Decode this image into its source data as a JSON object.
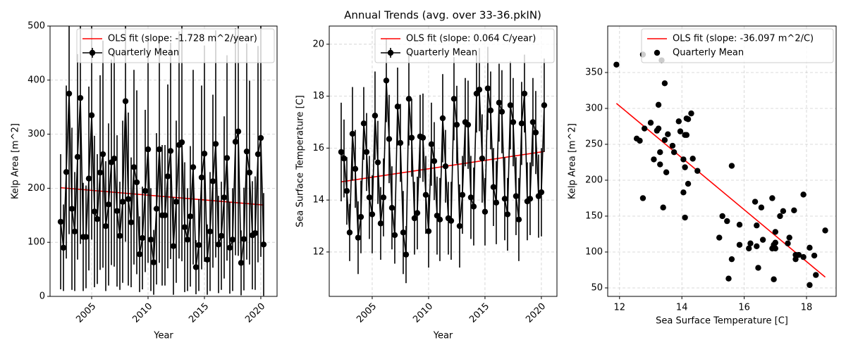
{
  "chart_data": [
    {
      "type": "line",
      "xlabel": "Year",
      "ylabel": "Kelp Area [m^2]",
      "xlim": [
        2001.31,
        2021.44
      ],
      "ylim": [
        0,
        500
      ],
      "xticks": [
        2005,
        2010,
        2015,
        2020
      ],
      "yticks": [
        0,
        100,
        200,
        300,
        400,
        500
      ],
      "grid": true,
      "legend": "upper right",
      "x": [
        2002.25,
        2002.5,
        2002.75,
        2003,
        2003.25,
        2003.5,
        2003.75,
        2004,
        2004.25,
        2004.5,
        2004.75,
        2005,
        2005.25,
        2005.5,
        2005.75,
        2006,
        2006.25,
        2006.5,
        2006.75,
        2007,
        2007.25,
        2007.5,
        2007.75,
        2008,
        2008.25,
        2008.5,
        2008.75,
        2009,
        2009.25,
        2009.5,
        2009.75,
        2010,
        2010.25,
        2010.5,
        2010.75,
        2011,
        2011.25,
        2011.5,
        2011.75,
        2012,
        2012.25,
        2012.5,
        2012.75,
        2013,
        2013.25,
        2013.5,
        2013.75,
        2014,
        2014.25,
        2014.5,
        2014.75,
        2015,
        2015.25,
        2015.5,
        2015.75,
        2016,
        2016.25,
        2016.5,
        2016.75,
        2017,
        2017.25,
        2017.5,
        2017.75,
        2018,
        2018.25,
        2018.5,
        2018.75,
        2019,
        2019.25,
        2019.5,
        2019.75,
        2020,
        2020.25
      ],
      "series": [
        {
          "name": "OLS fit (slope: -1.728 m^2/year)",
          "color": "#ff0000",
          "line": true,
          "marker": false,
          "x": [
            2002.25,
            2020.25
          ],
          "values": [
            201,
            169
          ]
        },
        {
          "name": "Quarterly Mean",
          "color": "#000000",
          "line": true,
          "marker": true,
          "values": [
            138,
            90,
            230,
            375,
            162,
            120,
            258,
            367,
            110,
            110,
            218,
            335,
            157,
            143,
            229,
            263,
            130,
            170,
            248,
            255,
            158,
            112,
            175,
            361,
            180,
            137,
            239,
            211,
            78,
            108,
            195,
            272,
            105,
            63,
            162,
            272,
            150,
            150,
            222,
            269,
            93,
            175,
            280,
            285,
            128,
            105,
            148,
            239,
            54,
            95,
            220,
            264,
            68,
            120,
            213,
            282,
            96,
            112,
            183,
            256,
            90,
            105,
            286,
            305,
            62,
            106,
            268,
            229,
            113,
            117,
            263,
            293,
            96
          ],
          "errors": [
            125,
            80,
            160,
            260,
            150,
            110,
            190,
            270,
            100,
            95,
            170,
            230,
            140,
            120,
            180,
            210,
            120,
            150,
            190,
            200,
            140,
            100,
            150,
            260,
            160,
            120,
            180,
            170,
            70,
            95,
            150,
            210,
            95,
            60,
            140,
            210,
            130,
            130,
            170,
            200,
            90,
            150,
            210,
            220,
            120,
            95,
            130,
            180,
            50,
            85,
            170,
            200,
            65,
            110,
            160,
            210,
            90,
            100,
            150,
            190,
            85,
            95,
            210,
            230,
            60,
            95,
            200,
            170,
            100,
            105,
            200,
            220,
            95
          ]
        }
      ]
    },
    {
      "type": "line",
      "title": "Annual Trends (avg. over 33-36.pkIN)",
      "xlabel": "Year",
      "ylabel": "Sea Surface Temperature [C]",
      "xlim": [
        2001.19,
        2021.38
      ],
      "ylim": [
        10.29,
        20.7
      ],
      "xticks": [
        2005,
        2010,
        2015,
        2020
      ],
      "yticks": [
        12,
        14,
        16,
        18,
        20
      ],
      "grid": true,
      "legend": "upper right",
      "x": [
        2002.25,
        2002.5,
        2002.75,
        2003,
        2003.25,
        2003.5,
        2003.75,
        2004,
        2004.25,
        2004.5,
        2004.75,
        2005,
        2005.25,
        2005.5,
        2005.75,
        2006,
        2006.25,
        2006.5,
        2006.75,
        2007,
        2007.25,
        2007.5,
        2007.75,
        2008,
        2008.25,
        2008.5,
        2008.75,
        2009,
        2009.25,
        2009.5,
        2009.75,
        2010,
        2010.25,
        2010.5,
        2010.75,
        2011,
        2011.25,
        2011.5,
        2011.75,
        2012,
        2012.25,
        2012.5,
        2012.75,
        2013,
        2013.25,
        2013.5,
        2013.75,
        2014,
        2014.25,
        2014.5,
        2014.75,
        2015,
        2015.25,
        2015.5,
        2015.75,
        2016,
        2016.25,
        2016.5,
        2016.75,
        2017,
        2017.25,
        2017.5,
        2017.75,
        2018,
        2018.25,
        2018.5,
        2018.75,
        2019,
        2019.25,
        2019.5,
        2019.75,
        2020,
        2020.25
      ],
      "series": [
        {
          "name": "OLS fit (slope: 0.064 C/year)",
          "color": "#ff0000",
          "line": true,
          "marker": false,
          "x": [
            2002.25,
            2020.25
          ],
          "values": [
            14.7,
            15.87
          ]
        },
        {
          "name": "Quarterly Mean",
          "color": "#000000",
          "line": true,
          "marker": true,
          "values": [
            15.85,
            15.6,
            14.35,
            12.75,
            16.55,
            15.2,
            12.55,
            13.35,
            16.95,
            15.85,
            14.1,
            13.45,
            17.25,
            15.45,
            13.1,
            14.1,
            18.6,
            16.35,
            13.7,
            12.65,
            17.6,
            16.2,
            12.75,
            11.9,
            17.9,
            16.4,
            13.3,
            13.5,
            16.45,
            16.4,
            14.2,
            12.8,
            16.15,
            15.5,
            13.4,
            13.25,
            17.15,
            15.3,
            13.3,
            13.2,
            17.9,
            16.9,
            13.0,
            14.2,
            17.0,
            16.9,
            14.1,
            13.75,
            18.1,
            18.25,
            15.6,
            13.55,
            18.3,
            17.45,
            14.5,
            13.9,
            17.75,
            17.4,
            14.05,
            13.45,
            17.65,
            17.0,
            14.15,
            13.25,
            16.95,
            18.1,
            13.95,
            14.05,
            17.0,
            16.6,
            14.15,
            14.3,
            17.65
          ],
          "errors": [
            1.9,
            1.5,
            1.3,
            1.1,
            1.8,
            1.5,
            1.4,
            1.4,
            1.4,
            1.5,
            1.6,
            1.5,
            1.7,
            1.6,
            1.4,
            1.5,
            1.6,
            1.7,
            1.6,
            1.1,
            1.5,
            1.5,
            1.6,
            1.1,
            1.8,
            1.5,
            1.4,
            1.4,
            1.6,
            1.7,
            1.5,
            1.4,
            1.6,
            1.5,
            1.5,
            1.6,
            1.7,
            1.4,
            1.4,
            1.5,
            1.6,
            1.5,
            1.6,
            1.5,
            1.7,
            1.7,
            1.6,
            1.5,
            1.5,
            1.6,
            1.7,
            1.3,
            1.6,
            1.5,
            1.5,
            1.6,
            1.5,
            1.6,
            1.6,
            1.4,
            1.7,
            1.7,
            1.5,
            1.6,
            1.6,
            1.5,
            1.5,
            1.4,
            1.7,
            1.6,
            1.6,
            1.7,
            1.8
          ]
        }
      ]
    },
    {
      "type": "scatter",
      "xlabel": "Sea Surface Temperature [C]",
      "ylabel": "Kelp Area [m^2]",
      "xlim": [
        11.62,
        18.95
      ],
      "ylim": [
        38.2,
        414.7
      ],
      "xticks": [
        12,
        14,
        16,
        18
      ],
      "yticks": [
        50,
        100,
        150,
        200,
        250,
        300,
        350
      ],
      "grid": true,
      "legend": "upper right",
      "x": [
        15.85,
        15.6,
        14.35,
        12.75,
        16.55,
        15.2,
        12.55,
        13.35,
        16.95,
        15.85,
        14.1,
        13.45,
        17.25,
        15.45,
        13.1,
        14.1,
        18.6,
        16.35,
        13.7,
        12.65,
        17.6,
        16.2,
        12.75,
        11.9,
        17.9,
        16.4,
        13.3,
        13.5,
        16.45,
        16.4,
        14.2,
        12.8,
        16.15,
        15.5,
        13.4,
        13.25,
        17.15,
        15.3,
        13.3,
        13.2,
        17.9,
        16.9,
        13.0,
        14.2,
        17.0,
        16.9,
        14.1,
        13.75,
        18.1,
        18.25,
        15.6,
        13.55,
        18.3,
        17.45,
        14.5,
        13.9,
        17.75,
        17.4,
        14.05,
        13.45,
        17.65,
        17.0,
        14.15,
        13.25,
        16.95,
        18.1,
        13.95,
        14.05,
        17.0,
        16.6,
        14.15,
        14.3,
        17.65
      ],
      "series": [
        {
          "name": "OLS fit (slope: -36.097 m^2/C)",
          "color": "#ff0000",
          "line": true,
          "marker": false,
          "x": [
            11.9,
            18.6
          ],
          "values": [
            307,
            65
          ]
        },
        {
          "name": "Quarterly Mean",
          "color": "#000000",
          "line": false,
          "marker": true,
          "values": [
            138,
            90,
            230,
            375,
            162,
            120,
            258,
            367,
            110,
            110,
            218,
            335,
            157,
            143,
            229,
            263,
            130,
            170,
            248,
            255,
            158,
            112,
            175,
            361,
            180,
            137,
            239,
            211,
            78,
            108,
            195,
            272,
            105,
            63,
            162,
            272,
            150,
            150,
            222,
            269,
            93,
            175,
            280,
            285,
            128,
            105,
            148,
            239,
            54,
            95,
            220,
            264,
            68,
            120,
            213,
            282,
            96,
            112,
            183,
            256,
            90,
            105,
            286,
            305,
            62,
            106,
            268,
            229,
            113,
            117,
            263,
            293,
            96
          ]
        }
      ]
    }
  ]
}
